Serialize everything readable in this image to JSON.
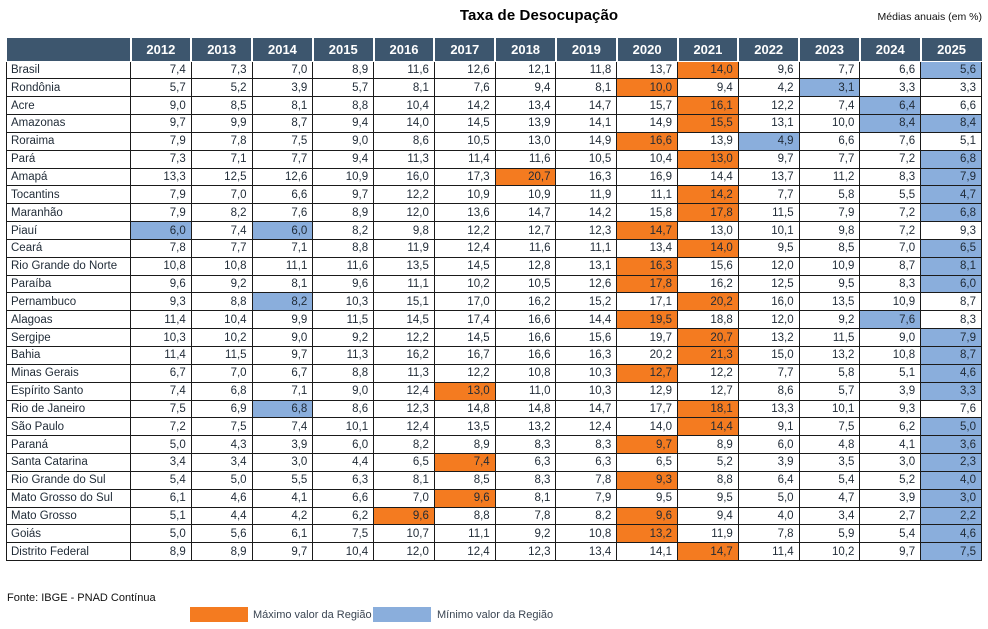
{
  "title": "Taxa de Desocupação",
  "subtitle": "Médias anuais (em %)",
  "source": "Fonte: IBGE - PNAD Contínua",
  "legend": {
    "max_label": "Máximo valor da Região",
    "min_label": "Mínimo valor da Região"
  },
  "colors": {
    "header_bg": "#3D566E",
    "header_text": "#FFFFFF",
    "max_highlight": "#F47B20",
    "min_highlight": "#8AAEDC",
    "grid_border": "#1a1a1a",
    "value_text": "#1F2A36"
  },
  "chart_data": {
    "type": "table",
    "title": "Taxa de Desocupação",
    "subtitle": "Médias anuais (em %)",
    "categories": [
      "2012",
      "2013",
      "2014",
      "2015",
      "2016",
      "2017",
      "2018",
      "2019",
      "2020",
      "2021",
      "2022",
      "2023",
      "2024",
      "2025"
    ],
    "note": "max_cols/min_cols are 0-based indexes into values marking orange (máximo) and blue (mínimo) highlighted cells"
  },
  "table": {
    "years": [
      "2012",
      "2013",
      "2014",
      "2015",
      "2016",
      "2017",
      "2018",
      "2019",
      "2020",
      "2021",
      "2022",
      "2023",
      "2024",
      "2025"
    ],
    "rows": [
      {
        "region": "Brasil",
        "values": [
          "7,4",
          "7,3",
          "7,0",
          "8,9",
          "11,6",
          "12,6",
          "12,1",
          "11,8",
          "13,7",
          "14,0",
          "9,6",
          "7,7",
          "6,6",
          "5,6"
        ],
        "max_cols": [
          9
        ],
        "min_cols": [
          13
        ]
      },
      {
        "region": "Rondônia",
        "values": [
          "5,7",
          "5,2",
          "3,9",
          "5,7",
          "8,1",
          "7,6",
          "9,4",
          "8,1",
          "10,0",
          "9,4",
          "4,2",
          "3,1",
          "3,3",
          "3,3"
        ],
        "max_cols": [
          8
        ],
        "min_cols": [
          11
        ]
      },
      {
        "region": "Acre",
        "values": [
          "9,0",
          "8,5",
          "8,1",
          "8,8",
          "10,4",
          "14,2",
          "13,4",
          "14,7",
          "15,7",
          "16,1",
          "12,2",
          "7,4",
          "6,4",
          "6,6"
        ],
        "max_cols": [
          9
        ],
        "min_cols": [
          12
        ]
      },
      {
        "region": "Amazonas",
        "values": [
          "9,7",
          "9,9",
          "8,7",
          "9,4",
          "14,0",
          "14,5",
          "13,9",
          "14,1",
          "14,9",
          "15,5",
          "13,1",
          "10,0",
          "8,4",
          "8,4"
        ],
        "max_cols": [
          9
        ],
        "min_cols": [
          12,
          13
        ]
      },
      {
        "region": "Roraima",
        "values": [
          "7,9",
          "7,8",
          "7,5",
          "9,0",
          "8,6",
          "10,5",
          "13,0",
          "14,9",
          "16,6",
          "13,9",
          "4,9",
          "6,6",
          "7,6",
          "5,1"
        ],
        "max_cols": [
          8
        ],
        "min_cols": [
          10
        ]
      },
      {
        "region": "Pará",
        "values": [
          "7,3",
          "7,1",
          "7,7",
          "9,4",
          "11,3",
          "11,4",
          "11,6",
          "10,5",
          "10,4",
          "13,0",
          "9,7",
          "7,7",
          "7,2",
          "6,8"
        ],
        "max_cols": [
          9
        ],
        "min_cols": [
          13
        ]
      },
      {
        "region": "Amapá",
        "values": [
          "13,3",
          "12,5",
          "12,6",
          "10,9",
          "16,0",
          "17,3",
          "20,7",
          "16,3",
          "16,9",
          "14,4",
          "13,7",
          "11,2",
          "8,3",
          "7,9"
        ],
        "max_cols": [
          6
        ],
        "min_cols": [
          13
        ]
      },
      {
        "region": "Tocantins",
        "values": [
          "7,9",
          "7,0",
          "6,6",
          "9,7",
          "12,2",
          "10,9",
          "10,9",
          "11,9",
          "11,1",
          "14,2",
          "7,7",
          "5,8",
          "5,5",
          "4,7"
        ],
        "max_cols": [
          9
        ],
        "min_cols": [
          13
        ]
      },
      {
        "region": "Maranhão",
        "values": [
          "7,9",
          "8,2",
          "7,6",
          "8,9",
          "12,0",
          "13,6",
          "14,7",
          "14,2",
          "15,8",
          "17,8",
          "11,5",
          "7,9",
          "7,2",
          "6,8"
        ],
        "max_cols": [
          9
        ],
        "min_cols": [
          13
        ]
      },
      {
        "region": "Piauí",
        "values": [
          "6,0",
          "7,4",
          "6,0",
          "8,2",
          "9,8",
          "12,2",
          "12,7",
          "12,3",
          "14,7",
          "13,0",
          "10,1",
          "9,8",
          "7,2",
          "9,3"
        ],
        "max_cols": [
          8
        ],
        "min_cols": [
          0,
          2
        ]
      },
      {
        "region": "Ceará",
        "values": [
          "7,8",
          "7,7",
          "7,1",
          "8,8",
          "11,9",
          "12,4",
          "11,6",
          "11,1",
          "13,4",
          "14,0",
          "9,5",
          "8,5",
          "7,0",
          "6,5"
        ],
        "max_cols": [
          9
        ],
        "min_cols": [
          13
        ]
      },
      {
        "region": "Rio Grande do Norte",
        "values": [
          "10,8",
          "10,8",
          "11,1",
          "11,6",
          "13,5",
          "14,5",
          "12,8",
          "13,1",
          "16,3",
          "15,6",
          "12,0",
          "10,9",
          "8,7",
          "8,1"
        ],
        "max_cols": [
          8
        ],
        "min_cols": [
          13
        ]
      },
      {
        "region": "Paraíba",
        "values": [
          "9,6",
          "9,2",
          "8,1",
          "9,6",
          "11,1",
          "10,2",
          "10,5",
          "12,6",
          "17,8",
          "16,2",
          "12,5",
          "9,5",
          "8,3",
          "6,0"
        ],
        "max_cols": [
          8
        ],
        "min_cols": [
          13
        ]
      },
      {
        "region": "Pernambuco",
        "values": [
          "9,3",
          "8,8",
          "8,2",
          "10,3",
          "15,1",
          "17,0",
          "16,2",
          "15,2",
          "17,1",
          "20,2",
          "16,0",
          "13,5",
          "10,9",
          "8,7"
        ],
        "max_cols": [
          9
        ],
        "min_cols": [
          2
        ]
      },
      {
        "region": "Alagoas",
        "values": [
          "11,4",
          "10,4",
          "9,9",
          "11,5",
          "14,5",
          "17,4",
          "16,6",
          "14,4",
          "19,5",
          "18,8",
          "12,0",
          "9,2",
          "7,6",
          "8,3"
        ],
        "max_cols": [
          8
        ],
        "min_cols": [
          12
        ]
      },
      {
        "region": "Sergipe",
        "values": [
          "10,3",
          "10,2",
          "9,0",
          "9,2",
          "12,2",
          "14,5",
          "16,6",
          "15,6",
          "19,7",
          "20,7",
          "13,2",
          "11,5",
          "9,0",
          "7,9"
        ],
        "max_cols": [
          9
        ],
        "min_cols": [
          13
        ]
      },
      {
        "region": "Bahia",
        "values": [
          "11,4",
          "11,5",
          "9,7",
          "11,3",
          "16,2",
          "16,7",
          "16,6",
          "16,3",
          "20,2",
          "21,3",
          "15,0",
          "13,2",
          "10,8",
          "8,7"
        ],
        "max_cols": [
          9
        ],
        "min_cols": [
          13
        ]
      },
      {
        "region": "Minas Gerais",
        "values": [
          "6,7",
          "7,0",
          "6,7",
          "8,8",
          "11,3",
          "12,2",
          "10,8",
          "10,3",
          "12,7",
          "12,2",
          "7,7",
          "5,8",
          "5,1",
          "4,6"
        ],
        "max_cols": [
          8
        ],
        "min_cols": [
          13
        ]
      },
      {
        "region": "Espírito Santo",
        "values": [
          "7,4",
          "6,8",
          "7,1",
          "9,0",
          "12,4",
          "13,0",
          "11,0",
          "10,3",
          "12,9",
          "12,7",
          "8,6",
          "5,7",
          "3,9",
          "3,3"
        ],
        "max_cols": [
          5
        ],
        "min_cols": [
          13
        ]
      },
      {
        "region": "Rio de Janeiro",
        "values": [
          "7,5",
          "6,9",
          "6,8",
          "8,6",
          "12,3",
          "14,8",
          "14,8",
          "14,7",
          "17,7",
          "18,1",
          "13,3",
          "10,1",
          "9,3",
          "7,6"
        ],
        "max_cols": [
          9
        ],
        "min_cols": [
          2
        ]
      },
      {
        "region": "São Paulo",
        "values": [
          "7,2",
          "7,5",
          "7,4",
          "10,1",
          "12,4",
          "13,5",
          "13,2",
          "12,4",
          "14,0",
          "14,4",
          "9,1",
          "7,5",
          "6,2",
          "5,0"
        ],
        "max_cols": [
          9
        ],
        "min_cols": [
          13
        ]
      },
      {
        "region": "Paraná",
        "values": [
          "5,0",
          "4,3",
          "3,9",
          "6,0",
          "8,2",
          "8,9",
          "8,3",
          "8,3",
          "9,7",
          "8,9",
          "6,0",
          "4,8",
          "4,1",
          "3,6"
        ],
        "max_cols": [
          8
        ],
        "min_cols": [
          13
        ]
      },
      {
        "region": "Santa Catarina",
        "values": [
          "3,4",
          "3,4",
          "3,0",
          "4,4",
          "6,5",
          "7,4",
          "6,3",
          "6,3",
          "6,5",
          "5,2",
          "3,9",
          "3,5",
          "3,0",
          "2,3"
        ],
        "max_cols": [
          5
        ],
        "min_cols": [
          13
        ]
      },
      {
        "region": "Rio Grande do Sul",
        "values": [
          "5,4",
          "5,0",
          "5,5",
          "6,3",
          "8,1",
          "8,5",
          "8,3",
          "7,8",
          "9,3",
          "8,8",
          "6,4",
          "5,4",
          "5,2",
          "4,0"
        ],
        "max_cols": [
          8
        ],
        "min_cols": [
          13
        ]
      },
      {
        "region": "Mato Grosso do Sul",
        "values": [
          "6,1",
          "4,6",
          "4,1",
          "6,6",
          "7,0",
          "9,6",
          "8,1",
          "7,9",
          "9,5",
          "9,5",
          "5,0",
          "4,7",
          "3,9",
          "3,0"
        ],
        "max_cols": [
          5
        ],
        "min_cols": [
          13
        ]
      },
      {
        "region": "Mato Grosso",
        "values": [
          "5,1",
          "4,4",
          "4,2",
          "6,2",
          "9,6",
          "8,8",
          "7,8",
          "8,2",
          "9,6",
          "9,4",
          "4,0",
          "3,4",
          "2,7",
          "2,2"
        ],
        "max_cols": [
          4,
          8
        ],
        "min_cols": [
          13
        ]
      },
      {
        "region": "Goiás",
        "values": [
          "5,0",
          "5,6",
          "6,1",
          "7,5",
          "10,7",
          "11,1",
          "9,2",
          "10,8",
          "13,2",
          "11,9",
          "7,8",
          "5,9",
          "5,4",
          "4,6"
        ],
        "max_cols": [
          8
        ],
        "min_cols": [
          13
        ]
      },
      {
        "region": "Distrito Federal",
        "values": [
          "8,9",
          "8,9",
          "9,7",
          "10,4",
          "12,0",
          "12,4",
          "12,3",
          "13,4",
          "14,1",
          "14,7",
          "11,4",
          "10,2",
          "9,7",
          "7,5"
        ],
        "max_cols": [
          9
        ],
        "min_cols": [
          13
        ]
      }
    ]
  }
}
